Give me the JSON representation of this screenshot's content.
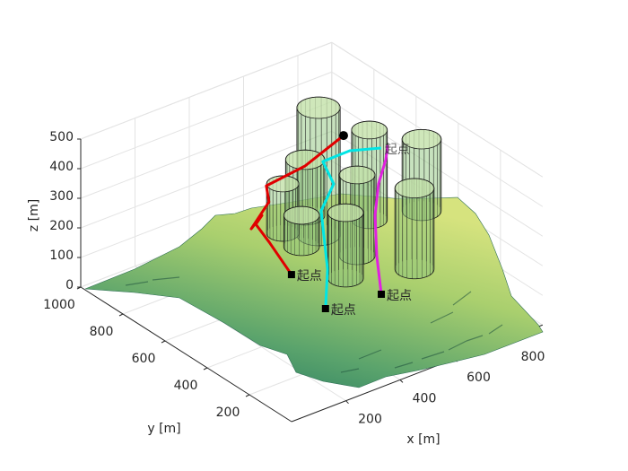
{
  "chart_data": {
    "type": "line3d",
    "xlabel": "x [m]",
    "ylabel": "y [m]",
    "zlabel": "z [m]",
    "xlim": [
      0,
      925
    ],
    "ylim": [
      0,
      1000
    ],
    "zlim": [
      0,
      500
    ],
    "xticks": [
      200,
      400,
      600,
      800
    ],
    "yticks": [
      200,
      400,
      600,
      800,
      1000
    ],
    "zticks": [
      0,
      100,
      200,
      300,
      400,
      500
    ],
    "grid": true,
    "series": [
      {
        "color": "#e00000",
        "label": "起点",
        "x": [
          444,
          435,
          426,
          440,
          399,
          462,
          450,
          568,
          702
        ],
        "y": [
          572,
          666,
          718,
          707,
          705,
          702,
          699,
          667,
          657
        ],
        "z": [
          80,
          150,
          190,
          220,
          190,
          260,
          320,
          360,
          420
        ]
      },
      {
        "color": "#00e5e5",
        "label": "起点",
        "x": [
          421,
          493,
          582,
          633,
          614,
          683,
          754
        ],
        "y": [
          381,
          464,
          609,
          615,
          642,
          603,
          546
        ],
        "z": [
          60,
          130,
          230,
          300,
          370,
          400,
          410
        ]
      },
      {
        "color": "#e020e0",
        "label": "起点",
        "x": [
          601,
          644,
          679,
          715,
          755,
          779
        ],
        "y": [
          348,
          425,
          478,
          508,
          525,
          547
        ],
        "z": [
          60,
          140,
          240,
          320,
          380,
          410
        ]
      }
    ],
    "annotations": [
      {
        "text": "起点",
        "x": 754,
        "y": 546,
        "z": 410
      }
    ],
    "cylinders": [
      {
        "x": 574,
        "y": 611,
        "r": 63,
        "z0": 150,
        "z1": 580
      },
      {
        "x": 746,
        "y": 591,
        "r": 52,
        "z0": 150,
        "z1": 453
      },
      {
        "x": 898,
        "y": 539,
        "r": 57,
        "z0": 150,
        "z1": 392
      },
      {
        "x": 614,
        "y": 726,
        "r": 57,
        "z0": 150,
        "z1": 338
      },
      {
        "x": 588,
        "y": 446,
        "r": 52,
        "z0": 150,
        "z1": 423
      },
      {
        "x": 498,
        "y": 683,
        "r": 47,
        "z0": 150,
        "z1": 317
      },
      {
        "x": 672,
        "y": 282,
        "r": 57,
        "z0": 150,
        "z1": 423
      },
      {
        "x": 493,
        "y": 587,
        "r": 52,
        "z0": 150,
        "z1": 256
      },
      {
        "x": 481,
        "y": 363,
        "r": 52,
        "z0": 150,
        "z1": 371
      }
    ]
  }
}
